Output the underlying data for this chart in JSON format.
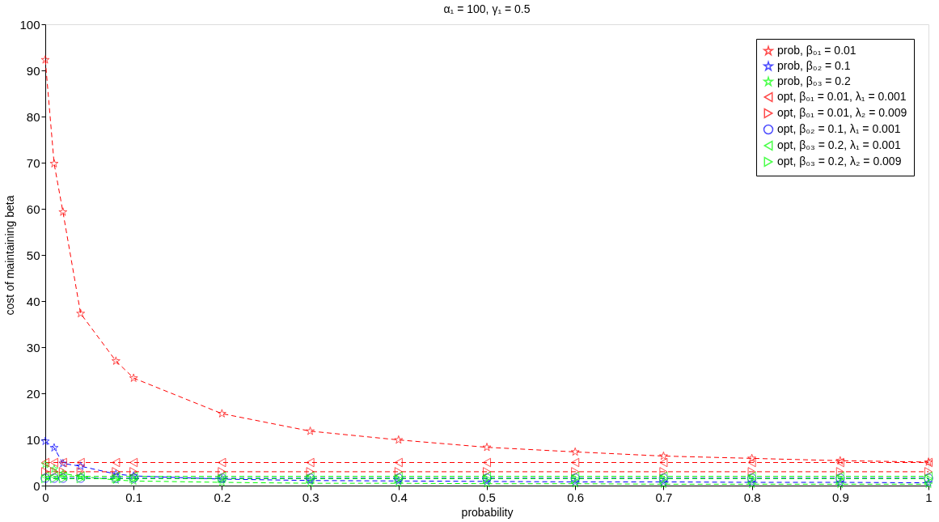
{
  "chart_data": {
    "type": "line",
    "title": "α₁ = 100, γ₁ = 0.5",
    "xlabel": "probability",
    "ylabel": "cost of maintaining beta",
    "x": [
      0,
      0.01,
      0.02,
      0.04,
      0.08,
      0.1,
      0.2,
      0.3,
      0.4,
      0.5,
      0.6,
      0.7,
      0.8,
      0.9,
      1
    ],
    "series": [
      {
        "name": "prob, β₀₁ = 0.01",
        "color": "#ff0000",
        "marker": "star",
        "values": [
          92.3,
          69.8,
          59.3,
          37.3,
          27,
          23.3,
          15.6,
          11.8,
          9.9,
          8.3,
          7.3,
          6.4,
          5.9,
          5.4,
          5.1
        ]
      },
      {
        "name": "prob, β₀₂ = 0.1",
        "color": "#0000ff",
        "marker": "star",
        "values": [
          9.6,
          8.2,
          4.8,
          4.2,
          2.5,
          2.1,
          1.4,
          1.1,
          1.0,
          0.9,
          0.8,
          0.8,
          0.7,
          0.7,
          0.6
        ]
      },
      {
        "name": "prob, β₀₃ = 0.2",
        "color": "#00ff00",
        "marker": "star",
        "values": [
          4.6,
          3.6,
          2.6,
          2.0,
          1.2,
          1.0,
          0.7,
          0.5,
          0.5,
          0.4,
          0.4,
          0.3,
          0.3,
          0.3,
          0.3
        ]
      },
      {
        "name": "opt, β₀₁ = 0.01, λ₁ = 0.001",
        "color": "#ff0000",
        "marker": "triangle-left",
        "values": [
          5,
          5,
          5,
          5,
          5,
          5,
          5,
          5,
          5,
          5,
          5,
          5,
          5,
          5,
          5
        ]
      },
      {
        "name": "opt, β₀₁ = 0.01, λ₂ = 0.009",
        "color": "#ff0000",
        "marker": "triangle-right",
        "values": [
          3,
          3,
          3,
          3,
          3,
          3,
          3,
          3,
          3,
          3,
          3,
          3,
          3,
          3,
          3
        ]
      },
      {
        "name": "opt, β₀₂ = 0.1, λ₁ = 0.001",
        "color": "#0000ff",
        "marker": "circle",
        "values": [
          1.6,
          1.6,
          1.6,
          1.6,
          1.6,
          1.6,
          1.6,
          1.6,
          1.6,
          1.6,
          1.6,
          1.6,
          1.6,
          1.6,
          1.6
        ]
      },
      {
        "name": "opt, β₀₃ = 0.2, λ₁ = 0.001",
        "color": "#00ff00",
        "marker": "triangle-left",
        "values": [
          2,
          2,
          2,
          2,
          2,
          2,
          2,
          2,
          2,
          2,
          2,
          2,
          2,
          2,
          2
        ]
      },
      {
        "name": "opt, β₀₃ = 0.2, λ₂ = 0.009",
        "color": "#00ff00",
        "marker": "triangle-right",
        "values": [
          1.5,
          1.5,
          1.5,
          1.5,
          1.5,
          1.5,
          1.5,
          1.5,
          1.5,
          1.5,
          1.5,
          1.5,
          1.5,
          1.5,
          1.5
        ]
      }
    ],
    "xlim": [
      0,
      1
    ],
    "xticks": [
      0,
      0.1,
      0.2,
      0.3,
      0.4,
      0.5,
      0.6,
      0.7,
      0.8,
      0.9,
      1
    ],
    "ylim": [
      0,
      100
    ],
    "yticks": [
      0,
      10,
      20,
      30,
      40,
      50,
      60,
      70,
      80,
      90,
      100
    ],
    "grid": false,
    "legend": "top right",
    "line_style": "dashed"
  }
}
